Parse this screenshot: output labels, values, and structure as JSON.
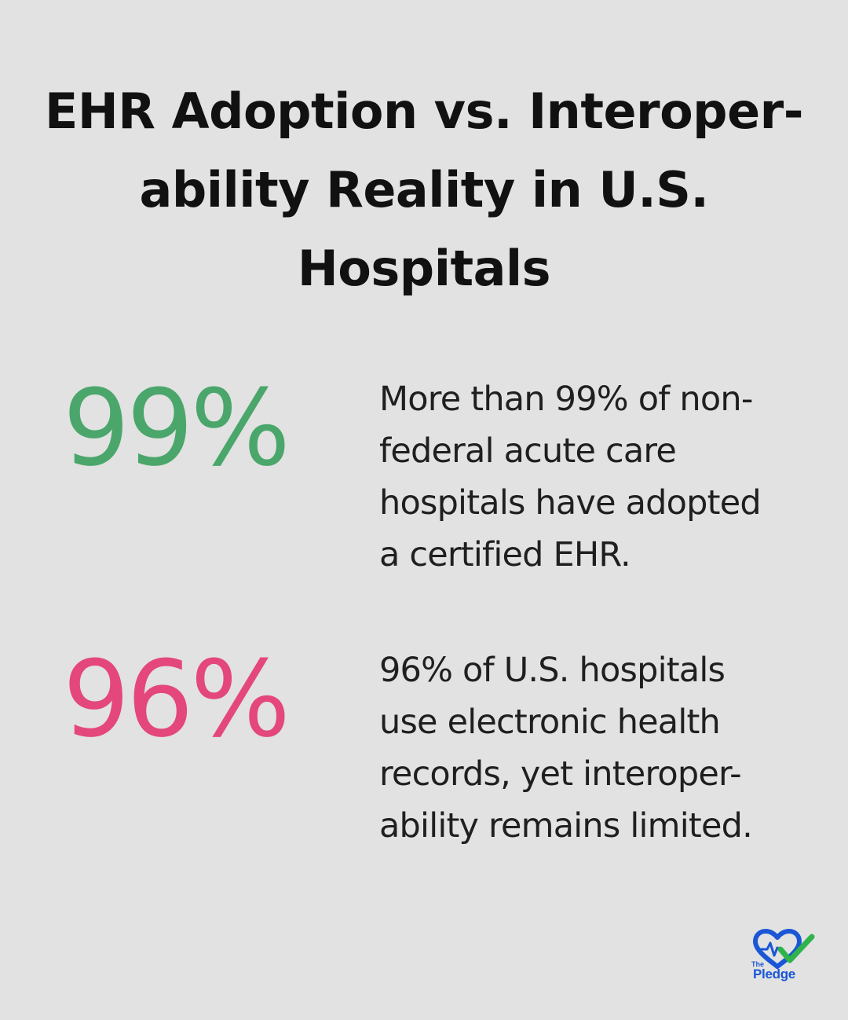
{
  "title": {
    "lines": [
      "EHR Adoption vs. Interoper-",
      "ability Reality in U.S.",
      "Hospitals"
    ]
  },
  "stats": [
    {
      "value": "99%",
      "color": "#4aa66b",
      "description_lines": [
        "More than 99% of non-",
        "federal acute care",
        "hospitals have adopted",
        "a certified EHR."
      ]
    },
    {
      "value": "96%",
      "color": "#e4477b",
      "description_lines": [
        "96% of U.S. hospitals",
        "use electronic health",
        "records, yet interoper-",
        "ability remains limited."
      ]
    }
  ],
  "logo": {
    "small_text": "The",
    "word": "Pledge",
    "icon": "heart-check-icon",
    "colors": {
      "heart": "#1a56d6",
      "check": "#2fb34a"
    }
  }
}
